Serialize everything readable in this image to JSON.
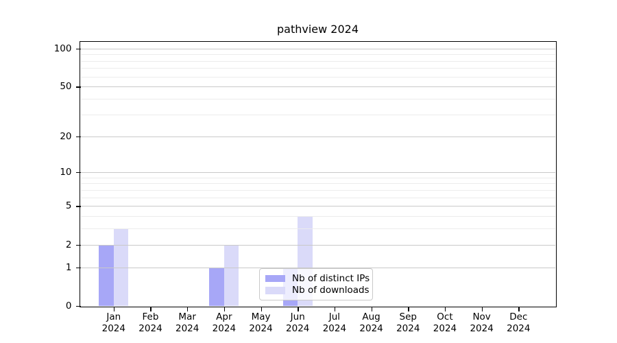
{
  "chart_data": {
    "type": "bar",
    "title": "pathview 2024",
    "categories": [
      {
        "month": "Jan",
        "year": "2024"
      },
      {
        "month": "Feb",
        "year": "2024"
      },
      {
        "month": "Mar",
        "year": "2024"
      },
      {
        "month": "Apr",
        "year": "2024"
      },
      {
        "month": "May",
        "year": "2024"
      },
      {
        "month": "Jun",
        "year": "2024"
      },
      {
        "month": "Jul",
        "year": "2024"
      },
      {
        "month": "Aug",
        "year": "2024"
      },
      {
        "month": "Sep",
        "year": "2024"
      },
      {
        "month": "Oct",
        "year": "2024"
      },
      {
        "month": "Nov",
        "year": "2024"
      },
      {
        "month": "Dec",
        "year": "2024"
      }
    ],
    "series": [
      {
        "name": "Nb of distinct IPs",
        "color": "#a7a7f7",
        "values": [
          2,
          0,
          0,
          1,
          0,
          1,
          0,
          0,
          0,
          0,
          0,
          0
        ]
      },
      {
        "name": "Nb of downloads",
        "color": "#dadaf9",
        "values": [
          3,
          0,
          0,
          2,
          0,
          4,
          0,
          0,
          0,
          0,
          0,
          0
        ]
      }
    ],
    "xlabel": "",
    "ylabel": "",
    "y_axis": {
      "scale": "log1p",
      "ticks": [
        0,
        1,
        2,
        5,
        10,
        20,
        50,
        100
      ],
      "minor_ticks": [
        3,
        4,
        6,
        7,
        8,
        9,
        30,
        40,
        60,
        70,
        80,
        90
      ],
      "ylim": [
        0,
        113
      ]
    },
    "legend": {
      "position": "lower-center",
      "entries": [
        "Nb of distinct IPs",
        "Nb of downloads"
      ]
    },
    "grid": "on",
    "colors": {
      "major_grid": "#c9c9c9",
      "minor_grid": "#ececec",
      "axis": "#000000",
      "background": "#ffffff"
    }
  }
}
